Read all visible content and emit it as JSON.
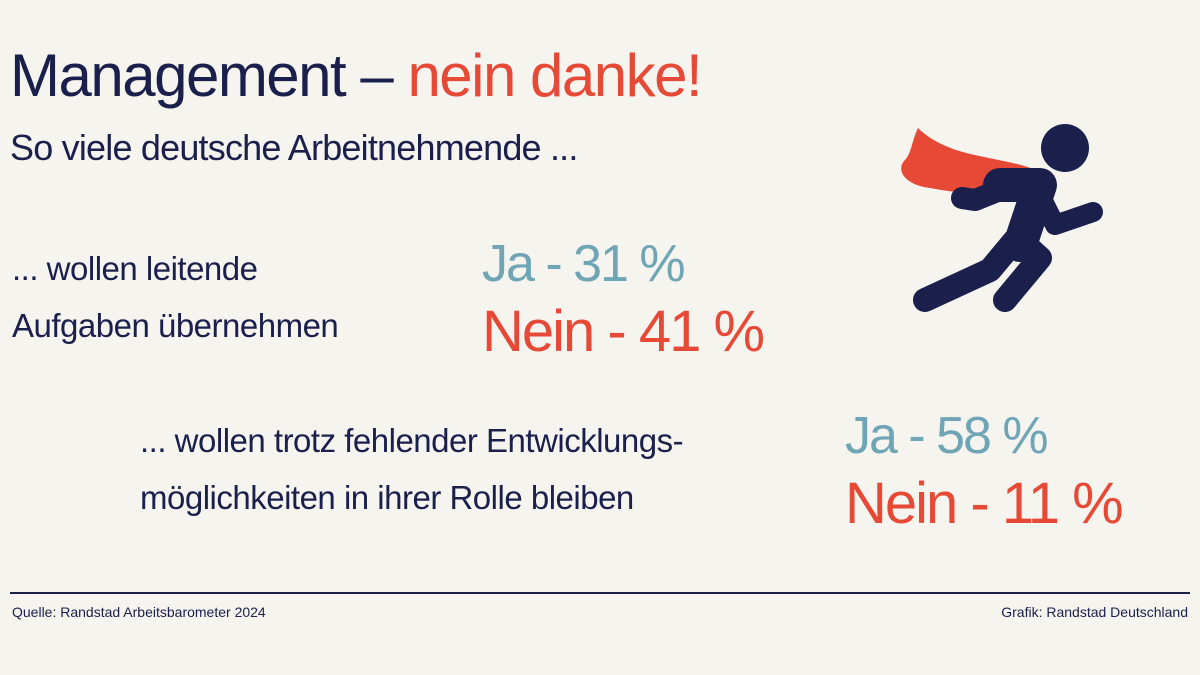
{
  "title": {
    "main": "Management – ",
    "accent": "nein danke!"
  },
  "subtitle": "So viele deutsche Arbeitnehmende ...",
  "questions": [
    {
      "line1": "... wollen leitende",
      "line2": "Aufgaben übernehmen",
      "ja": "Ja - 31 %",
      "nein": "Nein - 41 %"
    },
    {
      "line1": "... wollen trotz fehlender Entwicklungs-",
      "line2": "möglichkeiten in ihrer Rolle bleiben",
      "ja": "Ja - 58 %",
      "nein": "Nein - 11 %"
    }
  ],
  "footer": {
    "source": "Quelle: Randstad Arbeitsbarometer 2024",
    "credit": "Grafik: Randstad Deutschland"
  },
  "icon": "running-superhero-icon",
  "colors": {
    "navy": "#1a1f4b",
    "red": "#e64a37",
    "teal": "#6fa5b4",
    "background": "#f5f4ef"
  }
}
